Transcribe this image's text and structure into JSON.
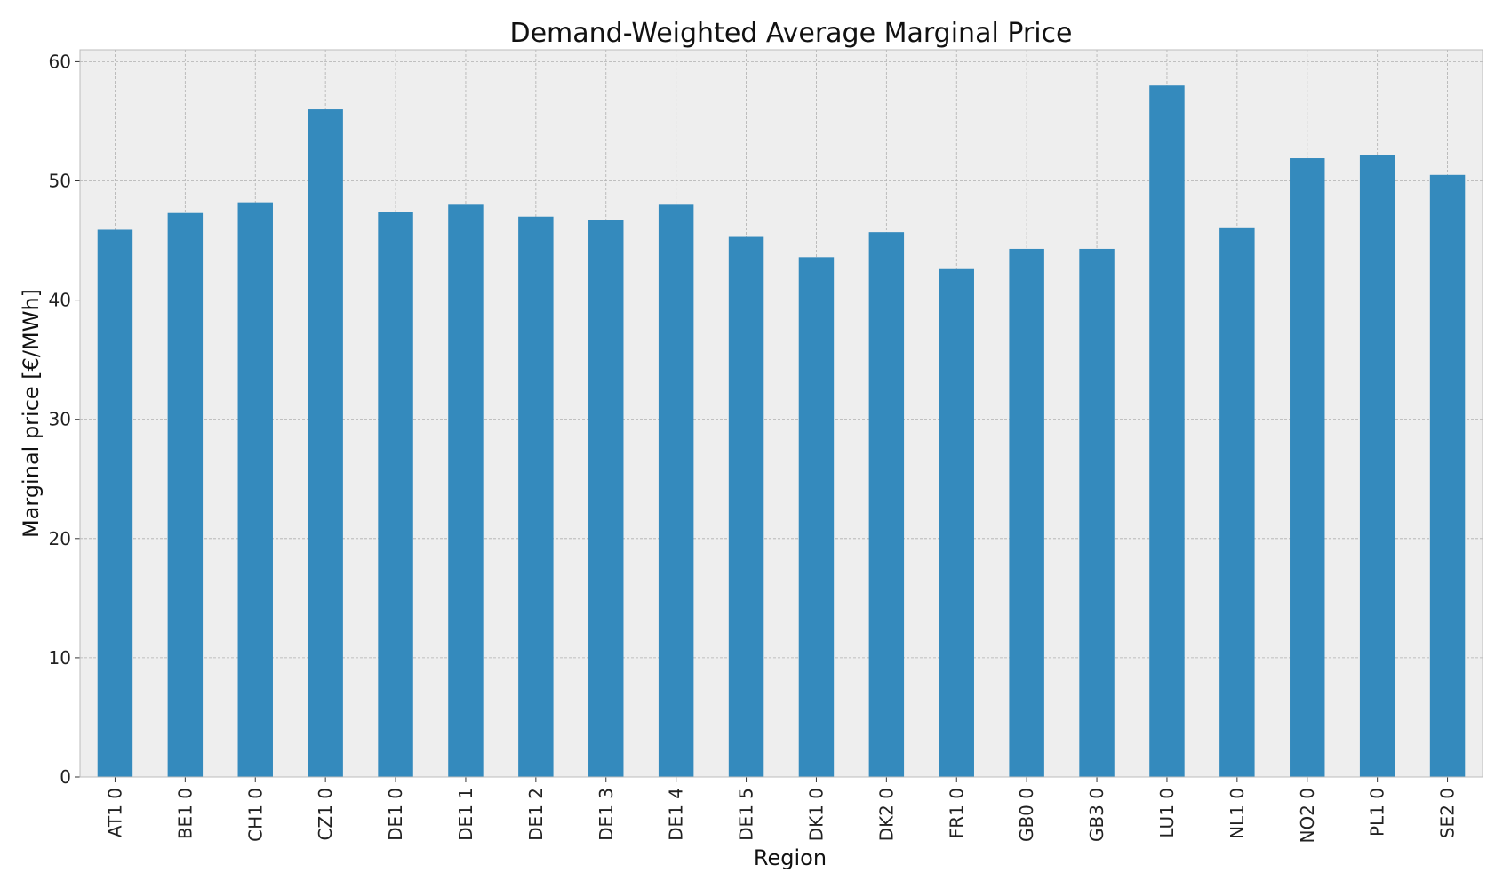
{
  "chart_data": {
    "type": "bar",
    "title": "Demand-Weighted Average Marginal Price",
    "xlabel": "Region",
    "ylabel": "Marginal price [€/MWh]",
    "categories": [
      "AT1 0",
      "BE1 0",
      "CH1 0",
      "CZ1 0",
      "DE1 0",
      "DE1 1",
      "DE1 2",
      "DE1 3",
      "DE1 4",
      "DE1 5",
      "DK1 0",
      "DK2 0",
      "FR1 0",
      "GB0 0",
      "GB3 0",
      "LU1 0",
      "NL1 0",
      "NO2 0",
      "PL1 0",
      "SE2 0"
    ],
    "values": [
      45.9,
      47.3,
      48.2,
      56.0,
      47.4,
      48.0,
      47.0,
      46.7,
      48.0,
      45.3,
      43.6,
      45.7,
      42.6,
      44.3,
      44.3,
      58.0,
      46.1,
      51.9,
      52.2,
      50.5
    ],
    "yticks": [
      0,
      10,
      20,
      30,
      40,
      50,
      60
    ],
    "ylim": [
      0,
      61
    ],
    "grid": true,
    "colors": {
      "bar": "#348abd",
      "plot_bg": "#eeeeee",
      "grid": "#b0b0b0",
      "frame": "#bcbcbc"
    }
  }
}
